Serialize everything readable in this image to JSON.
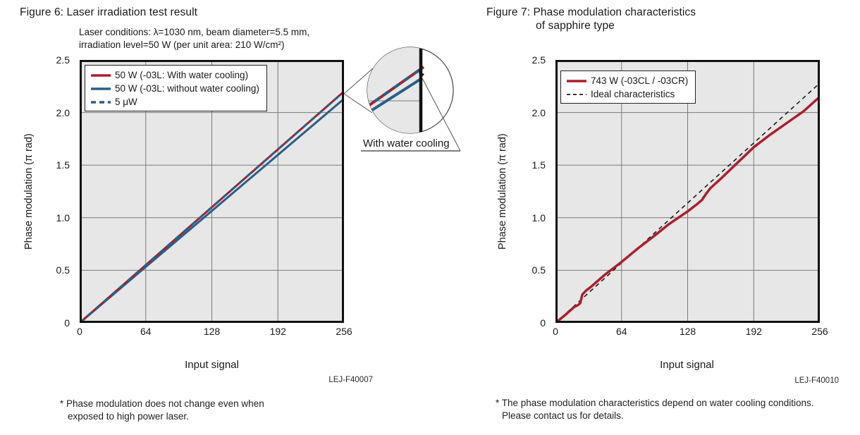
{
  "colors": {
    "plot_bg": "#e7e7e7",
    "grid": "#7a7a7a",
    "ink": "#111111",
    "red": "#ab1f2d",
    "blue": "#2a5f86",
    "black": "#1a1a1a"
  },
  "chart_data": [
    {
      "type": "line",
      "title": "Figure 6: Laser irradiation test result",
      "subtitle_line1": "Laser conditions: λ=1030 nm, beam diameter=5.5 mm,",
      "subtitle_line2": "irradiation level=50 W (per unit area: 210 W/cm²)",
      "xlabel": "Input signal",
      "ylabel": "Phase modulation (π rad)",
      "xlim": [
        0,
        256
      ],
      "ylim": [
        0,
        2.5
      ],
      "x_ticks": [
        0,
        64,
        128,
        192,
        256
      ],
      "x_tick_labels": [
        "0",
        "64",
        "128",
        "192",
        "256"
      ],
      "y_ticks": [
        0,
        0.5,
        1.0,
        1.5,
        2.0,
        2.5
      ],
      "y_tick_labels": [
        "0",
        "0.5",
        "1.0",
        "1.5",
        "2.0",
        "2.5"
      ],
      "grid": true,
      "legend_position": "top-left",
      "annotation_label": "With water cooling",
      "series": [
        {
          "name": "50 W (-03L: With water cooling)",
          "color": "#ab1f2d",
          "style": "solid",
          "width": 3,
          "z": 2,
          "points": [
            [
              0,
              0
            ],
            [
              256,
              2.2
            ]
          ]
        },
        {
          "name": "50 W (-03L: without water cooling)",
          "color": "#2a5f86",
          "style": "solid",
          "width": 3,
          "z": 1,
          "points": [
            [
              0,
              0
            ],
            [
              256,
              2.13
            ]
          ]
        },
        {
          "name": "5 μW",
          "color": "#2a5f86",
          "style": "dashed",
          "width": 3,
          "z": 3,
          "points": [
            [
              0,
              0
            ],
            [
              256,
              2.2
            ]
          ]
        }
      ]
    },
    {
      "type": "line",
      "title_line1": "Figure 7: Phase modulation characteristics",
      "title_line2": "of sapphire type",
      "xlabel": "Input signal",
      "ylabel": "Phase modulation (π rad)",
      "xlim": [
        0,
        256
      ],
      "ylim": [
        0,
        2.5
      ],
      "x_ticks": [
        0,
        64,
        128,
        192,
        256
      ],
      "x_tick_labels": [
        "0",
        "64",
        "128",
        "192",
        "256"
      ],
      "y_ticks": [
        0,
        0.5,
        1.0,
        1.5,
        2.0,
        2.5
      ],
      "y_tick_labels": [
        "0",
        "0.5",
        "1.0",
        "1.5",
        "2.0",
        "2.5"
      ],
      "grid": true,
      "legend_position": "top-left",
      "series": [
        {
          "name": "743 W (-03CL / -03CR)",
          "color": "#ab1f2d",
          "style": "solid",
          "width": 3.5,
          "z": 2,
          "points": [
            [
              0,
              0
            ],
            [
              10,
              0.08
            ],
            [
              18,
              0.15
            ],
            [
              22,
              0.17
            ],
            [
              24,
              0.19
            ],
            [
              26,
              0.27
            ],
            [
              30,
              0.31
            ],
            [
              34,
              0.34
            ],
            [
              48,
              0.46
            ],
            [
              64,
              0.58
            ],
            [
              80,
              0.71
            ],
            [
              96,
              0.83
            ],
            [
              110,
              0.94
            ],
            [
              122,
              1.02
            ],
            [
              128,
              1.06
            ],
            [
              136,
              1.12
            ],
            [
              142,
              1.17
            ],
            [
              146,
              1.23
            ],
            [
              150,
              1.28
            ],
            [
              160,
              1.37
            ],
            [
              176,
              1.52
            ],
            [
              192,
              1.67
            ],
            [
              208,
              1.79
            ],
            [
              224,
              1.9
            ],
            [
              240,
              2.01
            ],
            [
              256,
              2.15
            ]
          ]
        },
        {
          "name": "Ideal characteristics",
          "color": "#1a1a1a",
          "style": "dashed",
          "width": 1.6,
          "z": 1,
          "points": [
            [
              0,
              0
            ],
            [
              256,
              2.28
            ]
          ]
        }
      ]
    }
  ],
  "figure6": {
    "code": "LEJ-F40007",
    "footnote_line1": "* Phase modulation does not change even when",
    "footnote_line2": "exposed to high power laser."
  },
  "figure7": {
    "code": "LEJ-F40010",
    "footnote_line1": "* The phase modulation characteristics depend on water cooling conditions.",
    "footnote_line2": "Please contact us for details."
  }
}
